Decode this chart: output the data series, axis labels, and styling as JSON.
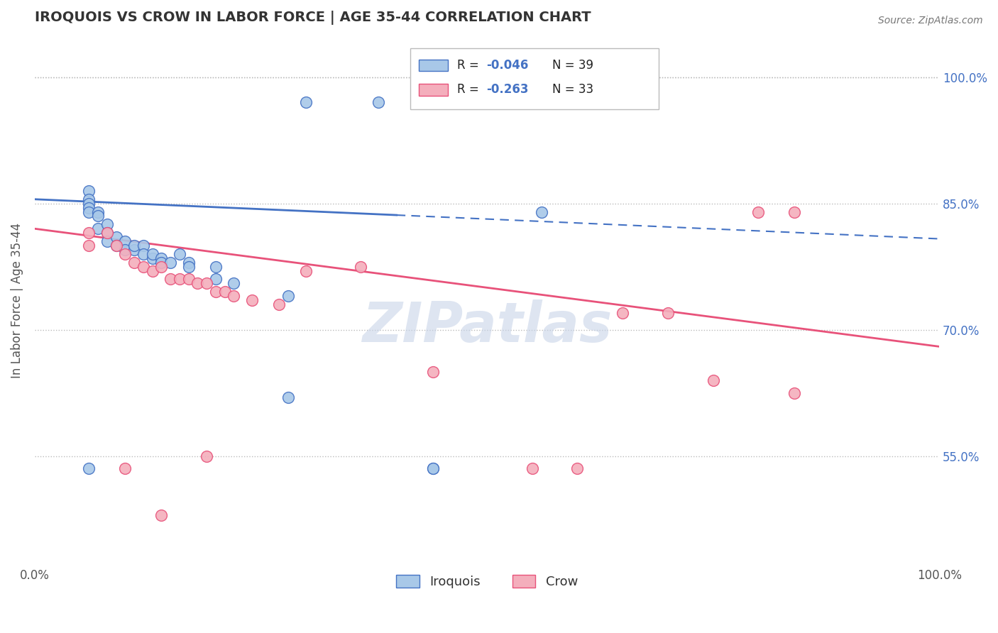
{
  "title": "IROQUOIS VS CROW IN LABOR FORCE | AGE 35-44 CORRELATION CHART",
  "source_text": "Source: ZipAtlas.com",
  "ylabel": "In Labor Force | Age 35-44",
  "xlim": [
    0.0,
    1.0
  ],
  "ylim": [
    0.42,
    1.05
  ],
  "y_tick_labels": [
    "55.0%",
    "70.0%",
    "85.0%",
    "100.0%"
  ],
  "y_ticks": [
    0.55,
    0.7,
    0.85,
    1.0
  ],
  "legend_R_iroquois": "-0.046",
  "legend_N_iroquois": "N = 39",
  "legend_R_crow": "-0.263",
  "legend_N_crow": "N = 33",
  "iroquois_color": "#A8C8E8",
  "crow_color": "#F4AEBC",
  "iroquois_line_color": "#4472C4",
  "crow_line_color": "#E8527A",
  "background_color": "#FFFFFF",
  "grid_color": "#BBBBBB",
  "title_color": "#333333",
  "watermark_color": "#C8D4E8",
  "iroquois_x": [
    0.06,
    0.06,
    0.06,
    0.06,
    0.06,
    0.07,
    0.07,
    0.07,
    0.08,
    0.08,
    0.08,
    0.09,
    0.09,
    0.1,
    0.1,
    0.11,
    0.11,
    0.12,
    0.12,
    0.13,
    0.13,
    0.14,
    0.14,
    0.15,
    0.16,
    0.17,
    0.17,
    0.2,
    0.2,
    0.22,
    0.28,
    0.3,
    0.38,
    0.44,
    0.44,
    0.56,
    0.44,
    0.28,
    0.06
  ],
  "iroquois_y": [
    0.865,
    0.855,
    0.85,
    0.845,
    0.84,
    0.84,
    0.835,
    0.82,
    0.825,
    0.815,
    0.805,
    0.81,
    0.8,
    0.805,
    0.795,
    0.795,
    0.8,
    0.8,
    0.79,
    0.785,
    0.79,
    0.785,
    0.78,
    0.78,
    0.79,
    0.78,
    0.775,
    0.775,
    0.76,
    0.755,
    0.74,
    0.97,
    0.97,
    0.97,
    0.535,
    0.84,
    0.535,
    0.62,
    0.535
  ],
  "crow_x": [
    0.06,
    0.06,
    0.08,
    0.09,
    0.1,
    0.11,
    0.12,
    0.13,
    0.14,
    0.15,
    0.16,
    0.17,
    0.18,
    0.19,
    0.2,
    0.21,
    0.22,
    0.24,
    0.27,
    0.3,
    0.36,
    0.44,
    0.55,
    0.6,
    0.65,
    0.7,
    0.75,
    0.8,
    0.84,
    0.84,
    0.1,
    0.14,
    0.19
  ],
  "crow_y": [
    0.815,
    0.8,
    0.815,
    0.8,
    0.79,
    0.78,
    0.775,
    0.77,
    0.775,
    0.76,
    0.76,
    0.76,
    0.755,
    0.755,
    0.745,
    0.745,
    0.74,
    0.735,
    0.73,
    0.77,
    0.775,
    0.65,
    0.535,
    0.535,
    0.72,
    0.72,
    0.64,
    0.84,
    0.84,
    0.625,
    0.535,
    0.48,
    0.55
  ],
  "iroquois_trend_x": [
    0.0,
    0.4,
    1.0
  ],
  "iroquois_trend_y": [
    0.855,
    0.832,
    0.808
  ],
  "crow_trend_x": [
    0.0,
    1.0
  ],
  "crow_trend_y": [
    0.82,
    0.68
  ]
}
